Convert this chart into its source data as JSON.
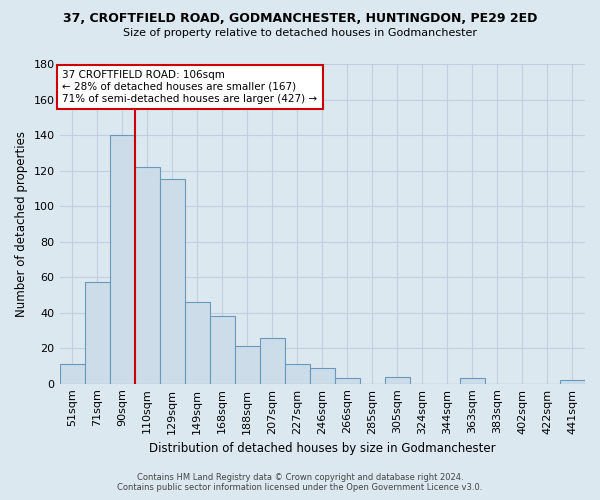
{
  "title": "37, CROFTFIELD ROAD, GODMANCHESTER, HUNTINGDON, PE29 2ED",
  "subtitle": "Size of property relative to detached houses in Godmanchester",
  "xlabel": "Distribution of detached houses by size in Godmanchester",
  "ylabel": "Number of detached properties",
  "bar_labels": [
    "51sqm",
    "71sqm",
    "90sqm",
    "110sqm",
    "129sqm",
    "149sqm",
    "168sqm",
    "188sqm",
    "207sqm",
    "227sqm",
    "246sqm",
    "266sqm",
    "285sqm",
    "305sqm",
    "324sqm",
    "344sqm",
    "363sqm",
    "383sqm",
    "402sqm",
    "422sqm",
    "441sqm"
  ],
  "bar_values": [
    11,
    57,
    140,
    122,
    115,
    46,
    38,
    21,
    26,
    11,
    9,
    3,
    0,
    4,
    0,
    0,
    3,
    0,
    0,
    0,
    2
  ],
  "bar_color": "#ccdce8",
  "bar_edge_color": "#6699bb",
  "ylim": [
    0,
    180
  ],
  "yticks": [
    0,
    20,
    40,
    60,
    80,
    100,
    120,
    140,
    160,
    180
  ],
  "vline_x": 2.5,
  "vline_color": "#cc0000",
  "annotation_title": "37 CROFTFIELD ROAD: 106sqm",
  "annotation_line1": "← 28% of detached houses are smaller (167)",
  "annotation_line2": "71% of semi-detached houses are larger (427) →",
  "annotation_box_color": "#ffffff",
  "annotation_box_edge": "#cc0000",
  "footer1": "Contains HM Land Registry data © Crown copyright and database right 2024.",
  "footer2": "Contains public sector information licensed under the Open Government Licence v3.0.",
  "background_color": "#dce8f0",
  "plot_background": "#dce8f0",
  "grid_color": "#c0d0e0"
}
